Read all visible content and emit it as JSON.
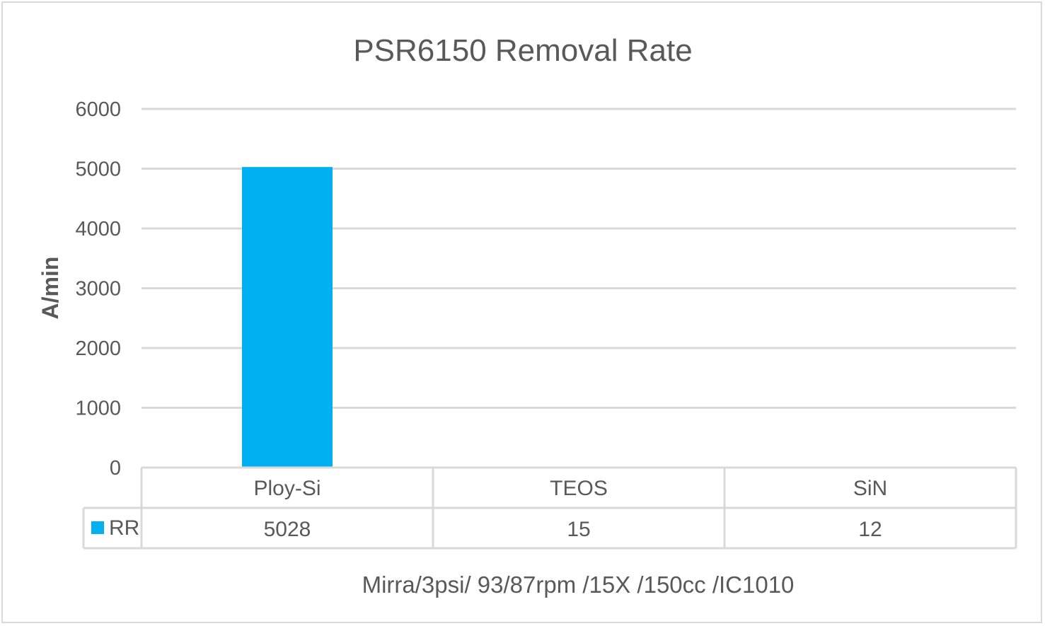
{
  "chart_data": {
    "type": "bar",
    "title": "PSR6150 Removal Rate",
    "ylabel": "A/min",
    "xlabel": "Mirra/3psi/ 93/87rpm /15X /150cc /IC1010",
    "categories": [
      "Ploy-Si",
      "TEOS",
      "SiN"
    ],
    "series": [
      {
        "name": "RR",
        "values": [
          5028,
          15,
          12
        ],
        "color": "#00b0f0"
      }
    ],
    "ylim": [
      0,
      6000
    ],
    "yticks": [
      0,
      1000,
      2000,
      3000,
      4000,
      5000,
      6000
    ],
    "grid": true,
    "legend": "data-table",
    "data_table": true
  }
}
